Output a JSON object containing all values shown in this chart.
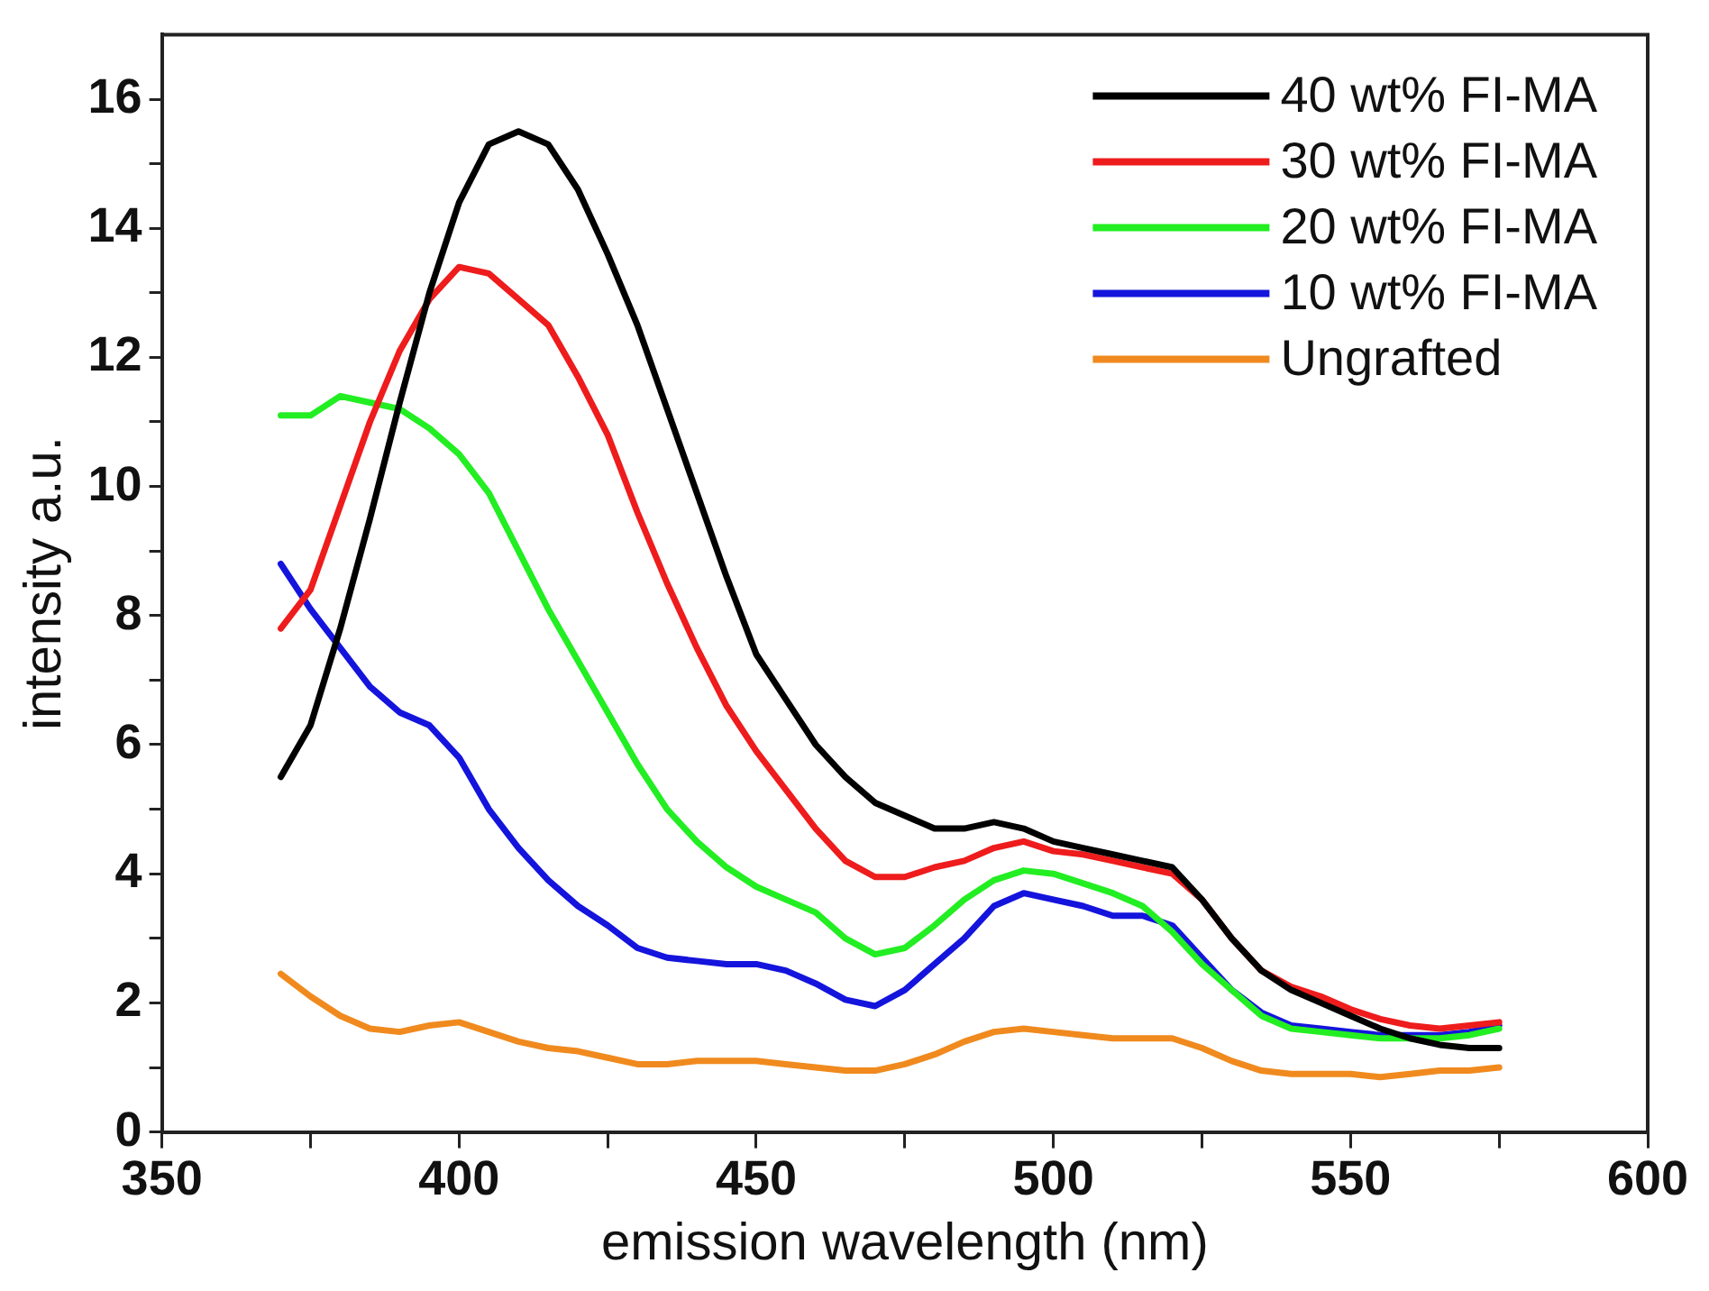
{
  "chart_data": {
    "type": "line",
    "xlabel": "emission wavelength (nm)",
    "ylabel": "intensity a.u.",
    "x": [
      370,
      375,
      380,
      385,
      390,
      395,
      400,
      405,
      410,
      415,
      420,
      425,
      430,
      435,
      440,
      445,
      450,
      455,
      460,
      465,
      470,
      475,
      480,
      485,
      490,
      495,
      500,
      505,
      510,
      515,
      520,
      525,
      530,
      535,
      540,
      545,
      550,
      555,
      560,
      565,
      570,
      575
    ],
    "xlim": [
      350,
      600
    ],
    "xticks": [
      350,
      {
        "value": 375,
        "label": null
      },
      400,
      {
        "value": 425,
        "label": null
      },
      450,
      {
        "value": 475,
        "label": null
      },
      500,
      {
        "value": 525,
        "label": null
      },
      550,
      {
        "value": 575,
        "label": null
      },
      600
    ],
    "ylim": [
      0,
      17
    ],
    "yticks": [
      0,
      {
        "value": 1,
        "label": null
      },
      2,
      {
        "value": 3,
        "label": null
      },
      4,
      {
        "value": 5,
        "label": null
      },
      6,
      {
        "value": 7,
        "label": null
      },
      8,
      {
        "value": 9,
        "label": null
      },
      10,
      {
        "value": 11,
        "label": null
      },
      12,
      {
        "value": 13,
        "label": null
      },
      14,
      {
        "value": 15,
        "label": null
      },
      16
    ],
    "legend": "top right",
    "marker": "none",
    "line_style": "solid",
    "series": [
      {
        "name": "40 wt% FI-MA",
        "color": "#000000",
        "values": [
          5.5,
          6.3,
          7.8,
          9.5,
          11.3,
          13.0,
          14.4,
          15.3,
          15.5,
          15.3,
          14.6,
          13.6,
          12.5,
          11.2,
          9.9,
          8.6,
          7.4,
          6.7,
          6.0,
          5.5,
          5.1,
          4.9,
          4.7,
          4.7,
          4.8,
          4.7,
          4.5,
          4.4,
          4.3,
          4.2,
          4.1,
          3.6,
          3.0,
          2.5,
          2.2,
          2.0,
          1.8,
          1.6,
          1.45,
          1.35,
          1.3,
          1.3
        ]
      },
      {
        "name": "30 wt% FI-MA",
        "color": "#ee1c1c",
        "values": [
          7.8,
          8.4,
          9.7,
          11.0,
          12.1,
          12.9,
          13.4,
          13.3,
          12.9,
          12.5,
          11.7,
          10.8,
          9.6,
          8.5,
          7.5,
          6.6,
          5.9,
          5.3,
          4.7,
          4.2,
          3.95,
          3.95,
          4.1,
          4.2,
          4.4,
          4.5,
          4.35,
          4.3,
          4.2,
          4.1,
          4.0,
          3.6,
          3.0,
          2.5,
          2.25,
          2.1,
          1.9,
          1.75,
          1.65,
          1.6,
          1.65,
          1.7
        ]
      },
      {
        "name": "20 wt% FI-MA",
        "color": "#22ee22",
        "values": [
          11.1,
          11.1,
          11.4,
          11.3,
          11.2,
          10.9,
          10.5,
          9.9,
          9.0,
          8.1,
          7.3,
          6.5,
          5.7,
          5.0,
          4.5,
          4.1,
          3.8,
          3.6,
          3.4,
          3.0,
          2.75,
          2.85,
          3.2,
          3.6,
          3.9,
          4.05,
          4.0,
          3.85,
          3.7,
          3.5,
          3.1,
          2.6,
          2.2,
          1.8,
          1.6,
          1.55,
          1.5,
          1.45,
          1.45,
          1.45,
          1.5,
          1.6
        ]
      },
      {
        "name": "10 wt% FI-MA",
        "color": "#1414dd",
        "values": [
          8.8,
          8.1,
          7.5,
          6.9,
          6.5,
          6.3,
          5.8,
          5.0,
          4.4,
          3.9,
          3.5,
          3.2,
          2.85,
          2.7,
          2.65,
          2.6,
          2.6,
          2.5,
          2.3,
          2.05,
          1.95,
          2.2,
          2.6,
          3.0,
          3.5,
          3.7,
          3.6,
          3.5,
          3.35,
          3.35,
          3.2,
          2.7,
          2.2,
          1.85,
          1.65,
          1.6,
          1.55,
          1.5,
          1.5,
          1.5,
          1.55,
          1.65
        ]
      },
      {
        "name": "Ungrafted",
        "color": "#f08a1e",
        "values": [
          2.45,
          2.1,
          1.8,
          1.6,
          1.55,
          1.65,
          1.7,
          1.55,
          1.4,
          1.3,
          1.25,
          1.15,
          1.05,
          1.05,
          1.1,
          1.1,
          1.1,
          1.05,
          1.0,
          0.95,
          0.95,
          1.05,
          1.2,
          1.4,
          1.55,
          1.6,
          1.55,
          1.5,
          1.45,
          1.45,
          1.45,
          1.3,
          1.1,
          0.95,
          0.9,
          0.9,
          0.9,
          0.85,
          0.9,
          0.95,
          0.95,
          1.0
        ]
      }
    ]
  }
}
